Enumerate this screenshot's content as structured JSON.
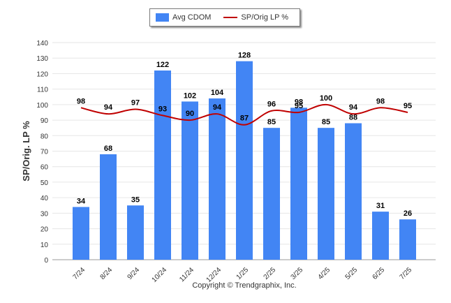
{
  "legend": {
    "bar_label": "Avg CDOM",
    "line_label": "SP/Orig LP %"
  },
  "footer": {
    "copyright": "Copyright © Trendgraphix, Inc."
  },
  "colors": {
    "bar": "#4285f4",
    "line": "#c00000",
    "grid": "#e6e6e6",
    "axis": "#999999"
  },
  "chart_data": {
    "type": "bar",
    "ylabel": "SP/Orig. LP %",
    "xlabel": "",
    "ylim": [
      0,
      140
    ],
    "yticks": [
      0,
      10,
      20,
      30,
      40,
      50,
      60,
      70,
      80,
      90,
      100,
      110,
      120,
      130,
      140
    ],
    "categories": [
      "7/24",
      "8/24",
      "9/24",
      "10/24",
      "11/24",
      "12/24",
      "1/25",
      "2/25",
      "3/25",
      "4/25",
      "5/25",
      "6/25",
      "7/25"
    ],
    "series": [
      {
        "name": "Avg CDOM",
        "type": "bar",
        "values": [
          34,
          68,
          35,
          122,
          102,
          104,
          128,
          85,
          98,
          85,
          88,
          31,
          26
        ]
      },
      {
        "name": "SP/Orig LP %",
        "type": "line",
        "values": [
          98,
          94,
          97,
          93,
          90,
          94,
          87,
          96,
          95,
          100,
          94,
          98,
          95
        ]
      }
    ],
    "grid": true,
    "legend_position": "top-center"
  }
}
